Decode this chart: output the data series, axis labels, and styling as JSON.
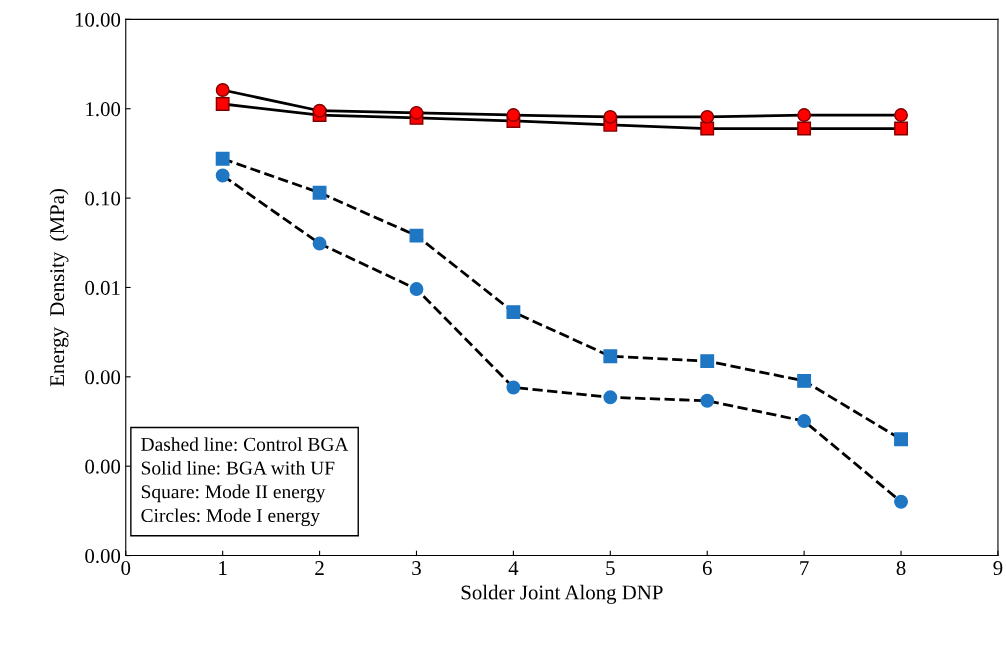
{
  "chart_data": {
    "type": "line",
    "xlabel": "Solder Joint Along DNP",
    "ylabel": "Energy  Density  (MPa)",
    "log": "y",
    "x": [
      1,
      2,
      3,
      4,
      5,
      6,
      7,
      8
    ],
    "series": [
      {
        "color": "#ff0000",
        "marker": "circle",
        "line_style": "solid",
        "values": [
          1.62,
          0.95,
          0.9,
          0.85,
          0.81,
          0.81,
          0.85,
          0.85
        ]
      },
      {
        "color": "#ff0000",
        "marker": "square",
        "line_style": "solid",
        "values": [
          1.13,
          0.85,
          0.79,
          0.73,
          0.66,
          0.6,
          0.6,
          0.6
        ]
      },
      {
        "color": "#1f77c4",
        "marker": "square",
        "line_style": "dashed",
        "values": [
          0.276,
          0.115,
          0.038,
          0.0053,
          0.0017,
          0.0015,
          0.0009,
          0.0002
        ]
      },
      {
        "color": "#1f77c4",
        "marker": "circle",
        "line_style": "dashed",
        "values": [
          0.179,
          0.031,
          0.0096,
          0.00076,
          0.00059,
          0.00054,
          0.00032,
          4e-05
        ]
      }
    ],
    "xlim": [
      0,
      9
    ],
    "xticks": [
      0,
      1,
      2,
      3,
      4,
      5,
      6,
      7,
      8,
      9
    ],
    "ylim": [
      1e-05,
      10
    ],
    "yticks": [
      {
        "value": 1e-05,
        "label": "0.00"
      },
      {
        "value": 0.0001,
        "label": "0.00"
      },
      {
        "value": 0.001,
        "label": "0.00"
      },
      {
        "value": 0.01,
        "label": "0.01"
      },
      {
        "value": 0.1,
        "label": "0.10"
      },
      {
        "value": 1,
        "label": "1.00"
      },
      {
        "value": 10,
        "label": "10.00"
      }
    ],
    "annotations": [
      "Dashed line: Control BGA\nSolid line: BGA with UF\nSquare: Mode II energy\nCircles: Mode I energy"
    ]
  }
}
